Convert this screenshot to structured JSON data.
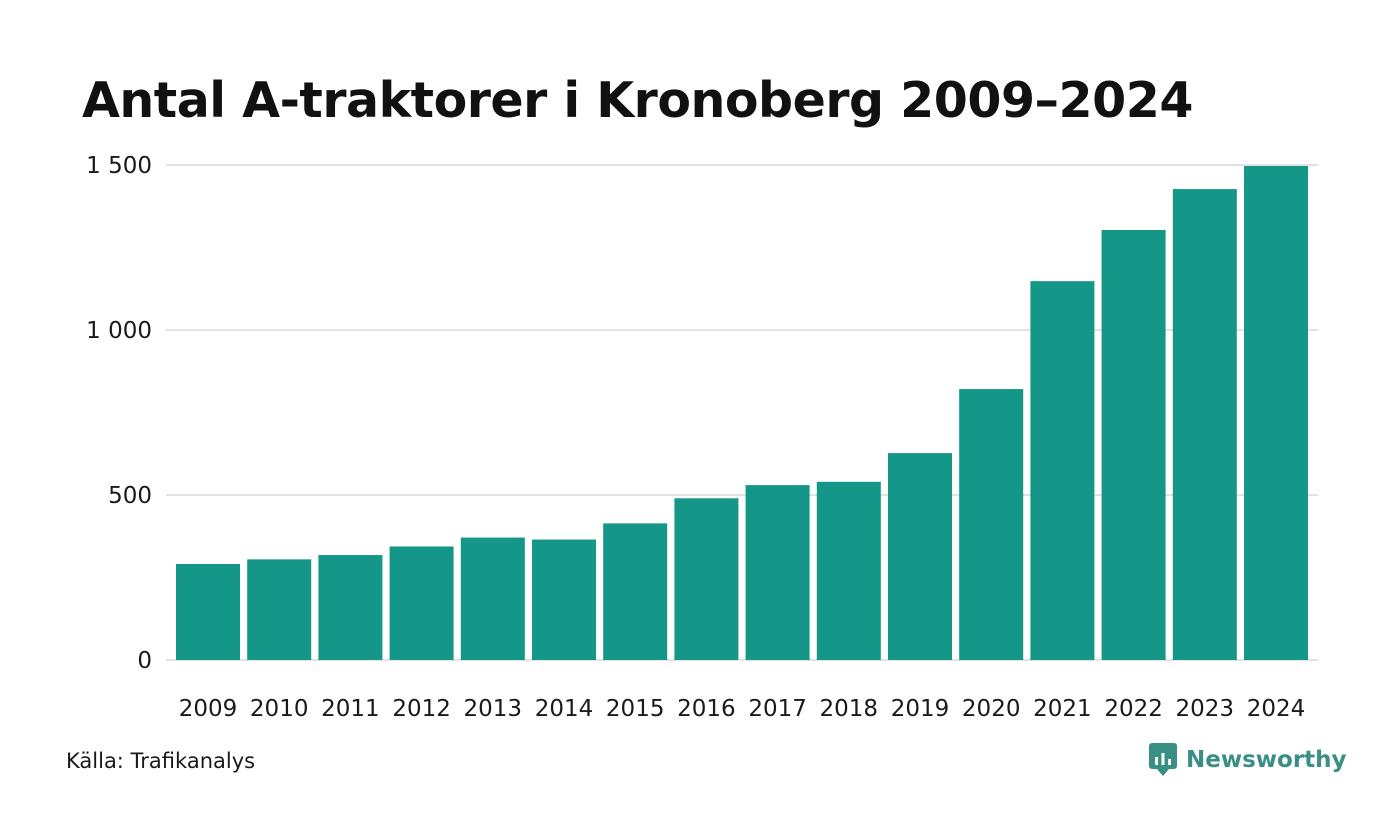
{
  "chart_data": {
    "type": "bar",
    "title": "Antal A-traktorer i Kronoberg 2009–2024",
    "xlabel": "",
    "ylabel": "",
    "categories": [
      "2009",
      "2010",
      "2011",
      "2012",
      "2013",
      "2014",
      "2015",
      "2016",
      "2017",
      "2018",
      "2019",
      "2020",
      "2021",
      "2022",
      "2023",
      "2024"
    ],
    "values": [
      291,
      305,
      318,
      344,
      371,
      365,
      414,
      490,
      530,
      540,
      627,
      821,
      1148,
      1303,
      1427,
      1497
    ],
    "ylim": [
      0,
      1500
    ],
    "yticks": [
      0,
      500,
      1000,
      1500
    ],
    "ytick_labels": [
      "0",
      "500",
      "1 000",
      "1 500"
    ],
    "grid": true,
    "bar_color": "#149688",
    "grid_color": "#e2e2e2"
  },
  "footer": {
    "source": "Källa: Trafikanalys",
    "brand": "Newsworthy",
    "brand_icon": "newsworthy-logo-icon",
    "brand_color": "#3a8f85"
  }
}
